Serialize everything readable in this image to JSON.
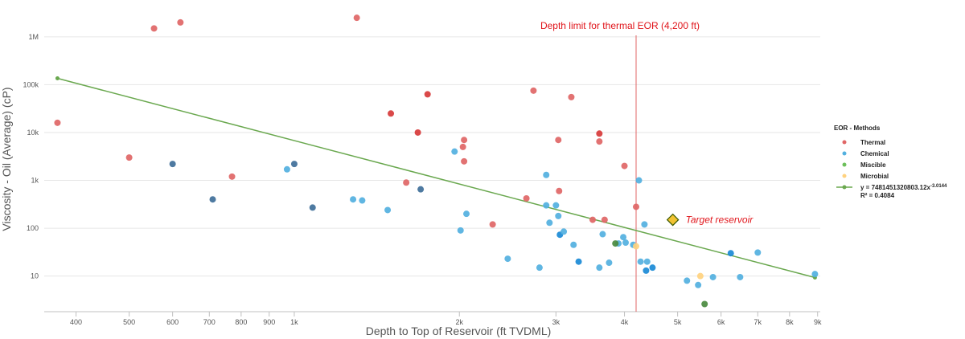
{
  "chart_data": {
    "type": "scatter",
    "x_scale": "log",
    "y_scale": "log",
    "xlabel": "Depth to Top of Reservoir (ft TVDML)",
    "ylabel": "Viscosity - Oil (Average) (cP)",
    "xlim": [
      350,
      9100
    ],
    "ylim": [
      1.8,
      4000000
    ],
    "x_ticks": [
      {
        "value": 400,
        "label": "400"
      },
      {
        "value": 500,
        "label": "500"
      },
      {
        "value": 600,
        "label": "600"
      },
      {
        "value": 700,
        "label": "700"
      },
      {
        "value": 800,
        "label": "800"
      },
      {
        "value": 900,
        "label": "900"
      },
      {
        "value": 1000,
        "label": "1k"
      },
      {
        "value": 2000,
        "label": "2k"
      },
      {
        "value": 3000,
        "label": "3k"
      },
      {
        "value": 4000,
        "label": "4k"
      },
      {
        "value": 5000,
        "label": "5k"
      },
      {
        "value": 6000,
        "label": "6k"
      },
      {
        "value": 7000,
        "label": "7k"
      },
      {
        "value": 8000,
        "label": "8k"
      },
      {
        "value": 9000,
        "label": "9k"
      }
    ],
    "y_ticks": [
      {
        "value": 10,
        "label": "10"
      },
      {
        "value": 100,
        "label": "100"
      },
      {
        "value": 1000,
        "label": "1k"
      },
      {
        "value": 10000,
        "label": "10k"
      },
      {
        "value": 100000,
        "label": "100k"
      },
      {
        "value": 1000000,
        "label": "1M"
      }
    ],
    "legend_title": "EOR - Methods",
    "legend_position": "right",
    "series": [
      {
        "name": "Thermal",
        "color": "#e06666",
        "points": [
          {
            "x": 370,
            "y": 16000,
            "shade": 0
          },
          {
            "x": 500,
            "y": 3000,
            "shade": 0
          },
          {
            "x": 555,
            "y": 1500000,
            "shade": 0
          },
          {
            "x": 620,
            "y": 2000000,
            "shade": 0
          },
          {
            "x": 770,
            "y": 1200,
            "shade": 0
          },
          {
            "x": 1300,
            "y": 2500000,
            "shade": 0
          },
          {
            "x": 1500,
            "y": 25000,
            "shade": 1
          },
          {
            "x": 1600,
            "y": 900,
            "shade": 0
          },
          {
            "x": 1680,
            "y": 10000,
            "shade": 1
          },
          {
            "x": 1750,
            "y": 63000,
            "shade": 1
          },
          {
            "x": 2030,
            "y": 5000,
            "shade": 0
          },
          {
            "x": 2040,
            "y": 7000,
            "shade": 0
          },
          {
            "x": 2040,
            "y": 2500,
            "shade": 0
          },
          {
            "x": 2300,
            "y": 120,
            "shade": 0
          },
          {
            "x": 2650,
            "y": 420,
            "shade": 0
          },
          {
            "x": 2730,
            "y": 75000,
            "shade": 0
          },
          {
            "x": 3030,
            "y": 7000,
            "shade": 0
          },
          {
            "x": 3040,
            "y": 600,
            "shade": 0
          },
          {
            "x": 3200,
            "y": 55000,
            "shade": 0
          },
          {
            "x": 3500,
            "y": 150,
            "shade": 0
          },
          {
            "x": 3600,
            "y": 9500,
            "shade": 1
          },
          {
            "x": 3600,
            "y": 6500,
            "shade": 0
          },
          {
            "x": 3680,
            "y": 150,
            "shade": 0
          },
          {
            "x": 4000,
            "y": 2000,
            "shade": 0
          },
          {
            "x": 4200,
            "y": 280,
            "shade": 0
          }
        ]
      },
      {
        "name": "Chemical",
        "color": "#52b0df",
        "points": [
          {
            "x": 600,
            "y": 2200,
            "shade": 2
          },
          {
            "x": 710,
            "y": 400,
            "shade": 2
          },
          {
            "x": 970,
            "y": 1700,
            "shade": 0
          },
          {
            "x": 1000,
            "y": 2200,
            "shade": 2
          },
          {
            "x": 1080,
            "y": 270,
            "shade": 2
          },
          {
            "x": 1280,
            "y": 400,
            "shade": 0
          },
          {
            "x": 1330,
            "y": 380,
            "shade": 0
          },
          {
            "x": 1480,
            "y": 240,
            "shade": 0
          },
          {
            "x": 1700,
            "y": 650,
            "shade": 2
          },
          {
            "x": 1960,
            "y": 4000,
            "shade": 0
          },
          {
            "x": 2010,
            "y": 90,
            "shade": 0
          },
          {
            "x": 2060,
            "y": 200,
            "shade": 0
          },
          {
            "x": 2450,
            "y": 23,
            "shade": 0
          },
          {
            "x": 2800,
            "y": 15,
            "shade": 0
          },
          {
            "x": 2880,
            "y": 1300,
            "shade": 0
          },
          {
            "x": 2880,
            "y": 300,
            "shade": 0
          },
          {
            "x": 2920,
            "y": 130,
            "shade": 0
          },
          {
            "x": 3000,
            "y": 300,
            "shade": 0
          },
          {
            "x": 3030,
            "y": 180,
            "shade": 0
          },
          {
            "x": 3050,
            "y": 73,
            "shade": 1
          },
          {
            "x": 3100,
            "y": 85,
            "shade": 0
          },
          {
            "x": 3230,
            "y": 45,
            "shade": 0
          },
          {
            "x": 3300,
            "y": 20,
            "shade": 1
          },
          {
            "x": 3600,
            "y": 15,
            "shade": 0
          },
          {
            "x": 3650,
            "y": 75,
            "shade": 0
          },
          {
            "x": 3750,
            "y": 19,
            "shade": 0
          },
          {
            "x": 3900,
            "y": 48,
            "shade": 0
          },
          {
            "x": 3980,
            "y": 65,
            "shade": 0
          },
          {
            "x": 4020,
            "y": 50,
            "shade": 0
          },
          {
            "x": 4150,
            "y": 45,
            "shade": 0
          },
          {
            "x": 4250,
            "y": 1000,
            "shade": 0
          },
          {
            "x": 4280,
            "y": 20,
            "shade": 0
          },
          {
            "x": 4350,
            "y": 120,
            "shade": 0
          },
          {
            "x": 4380,
            "y": 13,
            "shade": 1
          },
          {
            "x": 4400,
            "y": 20,
            "shade": 0
          },
          {
            "x": 4500,
            "y": 15,
            "shade": 1
          },
          {
            "x": 5200,
            "y": 8,
            "shade": 0
          },
          {
            "x": 5450,
            "y": 6.5,
            "shade": 0
          },
          {
            "x": 5800,
            "y": 9.5,
            "shade": 0
          },
          {
            "x": 6250,
            "y": 30,
            "shade": 1
          },
          {
            "x": 6500,
            "y": 9.5,
            "shade": 0
          },
          {
            "x": 7000,
            "y": 31,
            "shade": 0
          },
          {
            "x": 8900,
            "y": 11,
            "shade": 0
          }
        ]
      },
      {
        "name": "Miscible",
        "color": "#6cbf5a",
        "points": [
          {
            "x": 3850,
            "y": 48,
            "shade": 2
          },
          {
            "x": 5600,
            "y": 2.6,
            "shade": 2
          }
        ]
      },
      {
        "name": "Microbial",
        "color": "#ffd27f",
        "points": [
          {
            "x": 4200,
            "y": 42,
            "shade": 0
          },
          {
            "x": 5500,
            "y": 10,
            "shade": 0
          }
        ]
      }
    ],
    "trendline": {
      "name": "y = 7481451320803.12x",
      "exponent": "-3.0144",
      "r2_label": "R² = 0.4084",
      "color": "#6aa84f",
      "a": 7481451320803.12,
      "b": -3.0144,
      "x_start": 370,
      "x_end": 8900
    },
    "annotations": {
      "depth_limit_label": "Depth limit for thermal EOR (4,200 ft)",
      "depth_limit_x": 4200,
      "target_label": "Target reservoir",
      "target_x": 4900,
      "target_y": 150
    }
  }
}
